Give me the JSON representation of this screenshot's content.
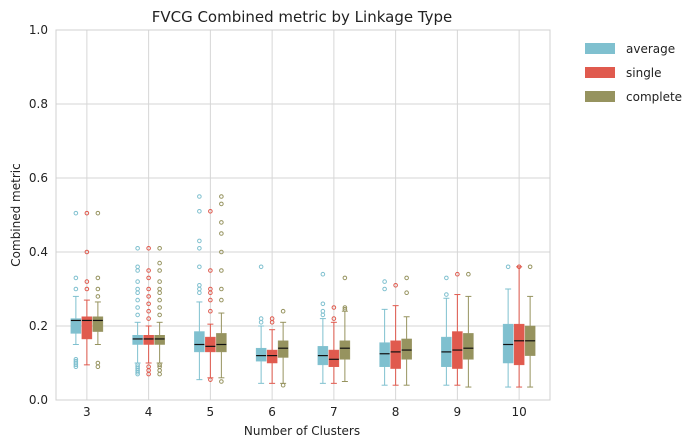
{
  "chart_data": {
    "type": "box",
    "title": "FVCG Combined metric by Linkage Type",
    "xlabel": "Number of Clusters",
    "ylabel": "Combined metric",
    "ylim": [
      0.0,
      1.0
    ],
    "yticks": [
      "0.0",
      "0.2",
      "0.4",
      "0.6",
      "0.8",
      "1.0"
    ],
    "categories": [
      "3",
      "4",
      "5",
      "6",
      "7",
      "8",
      "9",
      "10"
    ],
    "grid": true,
    "legend_position": "outside-top-right",
    "series": [
      {
        "name": "average",
        "color": "#7fc0cf",
        "boxes": [
          {
            "whislo": 0.15,
            "q1": 0.18,
            "med": 0.215,
            "q3": 0.22,
            "whishi": 0.28,
            "fliers": [
              0.09,
              0.095,
              0.1,
              0.105,
              0.11,
              0.3,
              0.33,
              0.505
            ]
          },
          {
            "whislo": 0.1,
            "q1": 0.15,
            "med": 0.165,
            "q3": 0.175,
            "whishi": 0.21,
            "fliers": [
              0.07,
              0.075,
              0.08,
              0.085,
              0.09,
              0.095,
              0.23,
              0.25,
              0.27,
              0.29,
              0.3,
              0.32,
              0.35,
              0.36,
              0.41
            ]
          },
          {
            "whislo": 0.055,
            "q1": 0.13,
            "med": 0.15,
            "q3": 0.185,
            "whishi": 0.265,
            "fliers": [
              0.29,
              0.3,
              0.31,
              0.36,
              0.41,
              0.43,
              0.51,
              0.55
            ]
          },
          {
            "whislo": 0.045,
            "q1": 0.105,
            "med": 0.12,
            "q3": 0.14,
            "whishi": 0.2,
            "fliers": [
              0.21,
              0.22,
              0.36
            ]
          },
          {
            "whislo": 0.045,
            "q1": 0.095,
            "med": 0.12,
            "q3": 0.145,
            "whishi": 0.22,
            "fliers": [
              0.23,
              0.24,
              0.26,
              0.34
            ]
          },
          {
            "whislo": 0.04,
            "q1": 0.09,
            "med": 0.125,
            "q3": 0.155,
            "whishi": 0.245,
            "fliers": [
              0.3,
              0.32
            ]
          },
          {
            "whislo": 0.04,
            "q1": 0.09,
            "med": 0.13,
            "q3": 0.17,
            "whishi": 0.275,
            "fliers": [
              0.285,
              0.33
            ]
          },
          {
            "whislo": 0.035,
            "q1": 0.1,
            "med": 0.15,
            "q3": 0.205,
            "whishi": 0.3,
            "fliers": [
              0.36
            ]
          }
        ]
      },
      {
        "name": "single",
        "color": "#e05a4e",
        "boxes": [
          {
            "whislo": 0.095,
            "q1": 0.165,
            "med": 0.215,
            "q3": 0.225,
            "whishi": 0.27,
            "fliers": [
              0.3,
              0.32,
              0.4,
              0.505
            ]
          },
          {
            "whislo": 0.1,
            "q1": 0.15,
            "med": 0.165,
            "q3": 0.175,
            "whishi": 0.2,
            "fliers": [
              0.07,
              0.08,
              0.09,
              0.22,
              0.24,
              0.26,
              0.28,
              0.3,
              0.33,
              0.35,
              0.41
            ]
          },
          {
            "whislo": 0.06,
            "q1": 0.13,
            "med": 0.145,
            "q3": 0.17,
            "whishi": 0.205,
            "fliers": [
              0.055,
              0.24,
              0.27,
              0.29,
              0.3,
              0.35,
              0.51
            ]
          },
          {
            "whislo": 0.045,
            "q1": 0.1,
            "med": 0.12,
            "q3": 0.135,
            "whishi": 0.19,
            "fliers": [
              0.21,
              0.22
            ]
          },
          {
            "whislo": 0.045,
            "q1": 0.09,
            "med": 0.11,
            "q3": 0.135,
            "whishi": 0.21,
            "fliers": [
              0.22,
              0.25
            ]
          },
          {
            "whislo": 0.04,
            "q1": 0.085,
            "med": 0.13,
            "q3": 0.16,
            "whishi": 0.255,
            "fliers": [
              0.31
            ]
          },
          {
            "whislo": 0.04,
            "q1": 0.085,
            "med": 0.135,
            "q3": 0.185,
            "whishi": 0.285,
            "fliers": [
              0.34
            ]
          },
          {
            "whislo": 0.035,
            "q1": 0.095,
            "med": 0.16,
            "q3": 0.205,
            "whishi": 0.36,
            "fliers": [
              0.36
            ]
          }
        ]
      },
      {
        "name": "complete",
        "color": "#96935f",
        "boxes": [
          {
            "whislo": 0.15,
            "q1": 0.185,
            "med": 0.215,
            "q3": 0.225,
            "whishi": 0.265,
            "fliers": [
              0.09,
              0.1,
              0.28,
              0.3,
              0.33,
              0.505
            ]
          },
          {
            "whislo": 0.1,
            "q1": 0.15,
            "med": 0.165,
            "q3": 0.175,
            "whishi": 0.21,
            "fliers": [
              0.07,
              0.08,
              0.09,
              0.095,
              0.23,
              0.25,
              0.27,
              0.29,
              0.3,
              0.32,
              0.35,
              0.37,
              0.41
            ]
          },
          {
            "whislo": 0.06,
            "q1": 0.13,
            "med": 0.15,
            "q3": 0.18,
            "whishi": 0.235,
            "fliers": [
              0.05,
              0.27,
              0.3,
              0.35,
              0.4,
              0.45,
              0.48,
              0.53,
              0.55
            ]
          },
          {
            "whislo": 0.045,
            "q1": 0.115,
            "med": 0.14,
            "q3": 0.16,
            "whishi": 0.21,
            "fliers": [
              0.04,
              0.24
            ]
          },
          {
            "whislo": 0.05,
            "q1": 0.11,
            "med": 0.14,
            "q3": 0.16,
            "whishi": 0.24,
            "fliers": [
              0.245,
              0.25,
              0.33
            ]
          },
          {
            "whislo": 0.04,
            "q1": 0.11,
            "med": 0.135,
            "q3": 0.165,
            "whishi": 0.225,
            "fliers": [
              0.29,
              0.33
            ]
          },
          {
            "whislo": 0.035,
            "q1": 0.11,
            "med": 0.14,
            "q3": 0.18,
            "whishi": 0.28,
            "fliers": [
              0.34
            ]
          },
          {
            "whislo": 0.035,
            "q1": 0.12,
            "med": 0.16,
            "q3": 0.2,
            "whishi": 0.28,
            "fliers": [
              0.36
            ]
          }
        ]
      }
    ]
  }
}
